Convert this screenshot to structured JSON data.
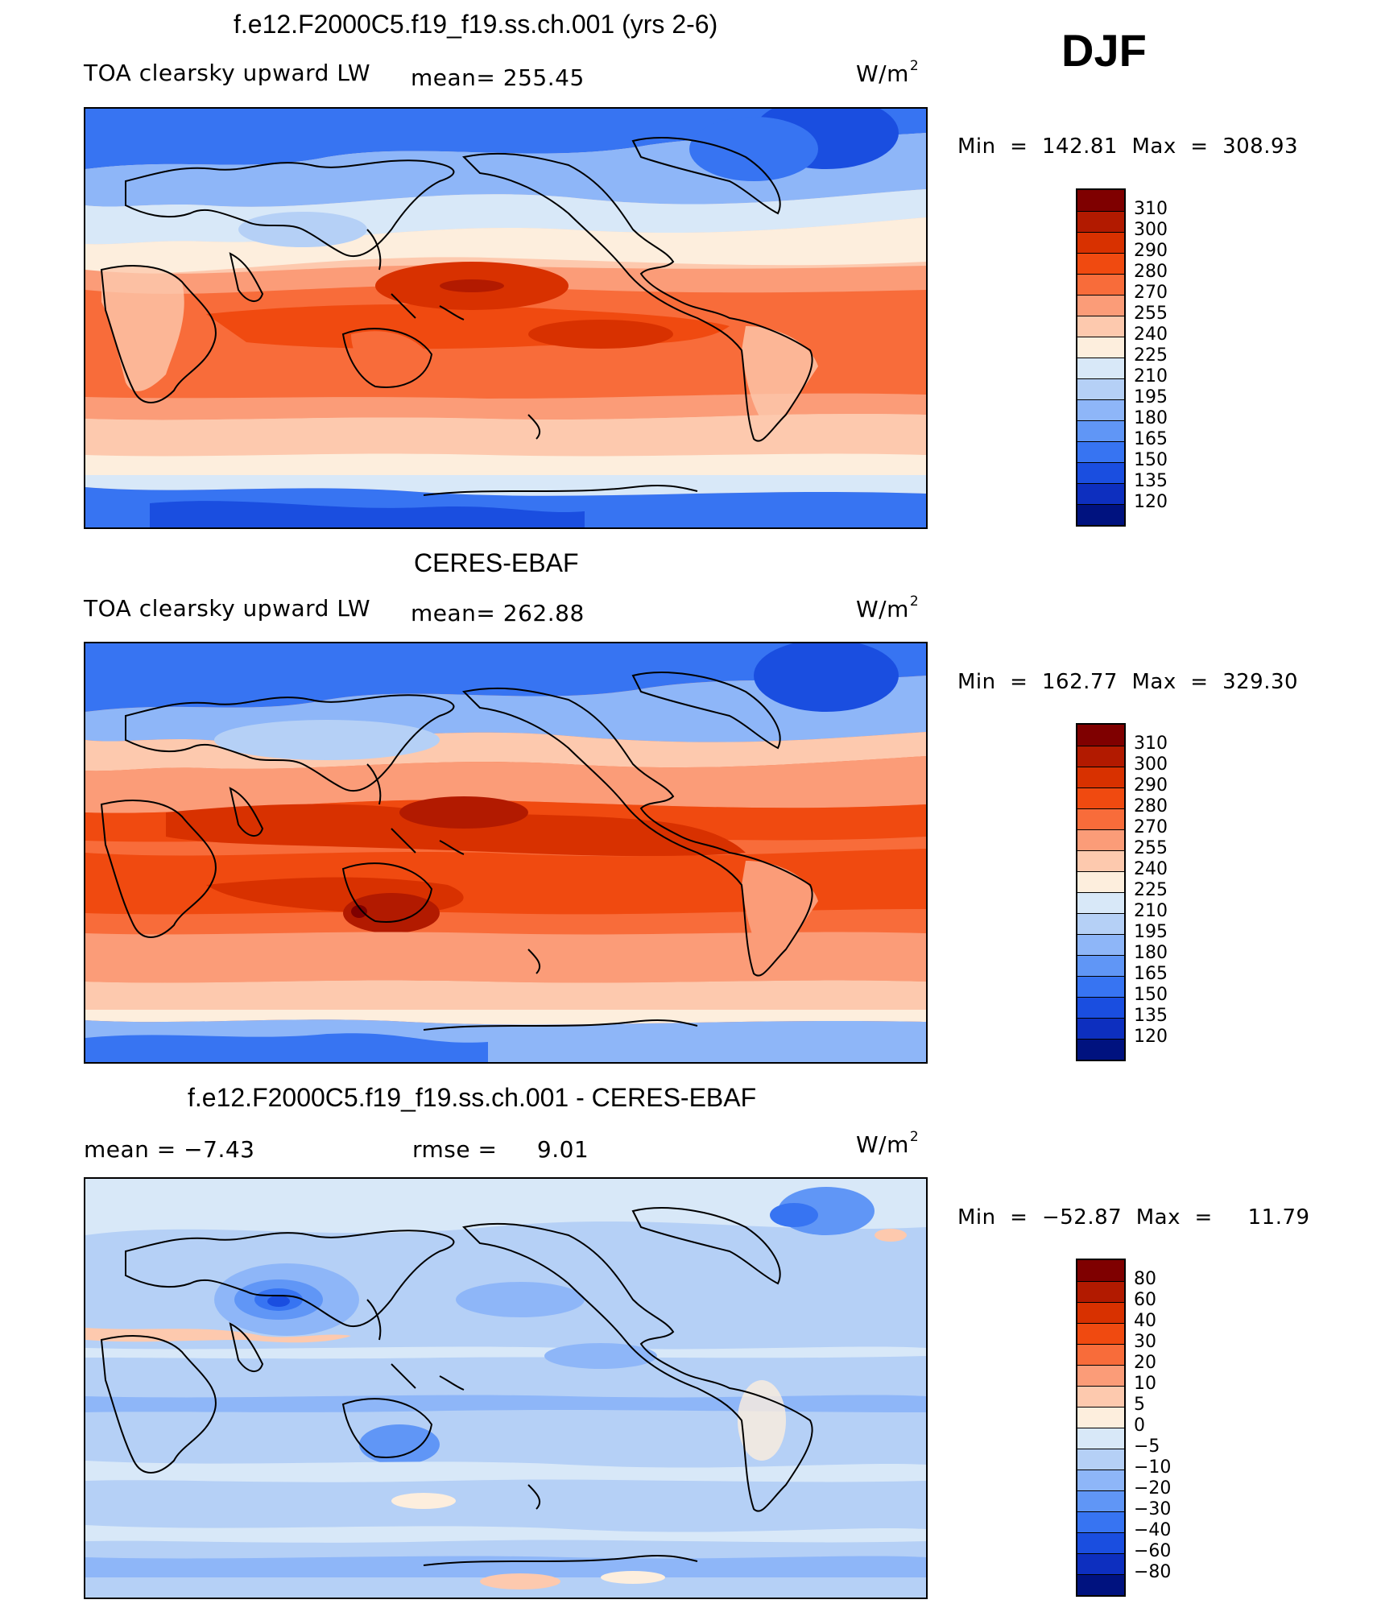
{
  "season_label": "DJF",
  "units": {
    "text": "W/m",
    "exponent": "2"
  },
  "colorbar_abs": {
    "labels": [
      "310",
      "300",
      "290",
      "280",
      "270",
      "255",
      "240",
      "225",
      "210",
      "195",
      "180",
      "165",
      "150",
      "135",
      "120"
    ],
    "colors": [
      "#7f0000",
      "#b21a00",
      "#d83100",
      "#f04a10",
      "#f86c3a",
      "#fb9c78",
      "#fdc9ae",
      "#fdeedd",
      "#d8e8f8",
      "#b5d0f6",
      "#8eb6f8",
      "#6096f6",
      "#3774f2",
      "#1a4ee0",
      "#0d2fbf",
      "#00127f"
    ]
  },
  "colorbar_diff": {
    "labels": [
      "80",
      "60",
      "40",
      "30",
      "20",
      "10",
      "5",
      "0",
      "−5",
      "−10",
      "−20",
      "−30",
      "−40",
      "−60",
      "−80"
    ],
    "colors": [
      "#7f0000",
      "#b21a00",
      "#d83100",
      "#f04a10",
      "#f86c3a",
      "#fb9c78",
      "#fdc9ae",
      "#fdeedd",
      "#d8e8f8",
      "#b5d0f6",
      "#8eb6f8",
      "#6096f6",
      "#3774f2",
      "#1a4ee0",
      "#0d2fbf",
      "#00127f"
    ]
  },
  "panels": [
    {
      "title": "f.e12.F2000C5.f19_f19.ss.ch.001 (yrs 2-6)",
      "left_label": "TOA clearsky upward LW",
      "stat_label": "mean=",
      "stat_value": "255.45",
      "minmax": "Min  =  142.81  Max  =  308.93"
    },
    {
      "title": "CERES-EBAF",
      "left_label": "TOA clearsky upward LW",
      "stat_label": "mean=",
      "stat_value": "262.88",
      "minmax": "Min  =  162.77  Max  =  329.30"
    },
    {
      "title": "f.e12.F2000C5.f19_f19.ss.ch.001 - CERES-EBAF",
      "left_label": "mean =    −7.43",
      "stat_label": "rmse =",
      "stat_value": "9.01",
      "minmax": "Min  =  −52.87  Max  =     11.79"
    }
  ]
}
